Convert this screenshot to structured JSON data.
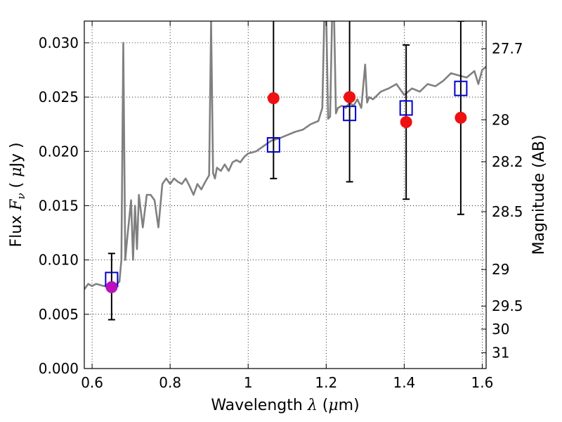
{
  "chart_data": {
    "type": "scatter",
    "title": "",
    "xlabel": "Wavelength  λ (μm)",
    "ylabel": "Flux  Fν  ( μJy )",
    "y2label": "Magnitude (AB)",
    "xlim": [
      0.58,
      1.61
    ],
    "ylim": [
      0.0,
      0.032
    ],
    "grid": true,
    "x_ticks": [
      0.6,
      0.8,
      1.0,
      1.2,
      1.4,
      1.6
    ],
    "x_tick_labels": [
      "0.6",
      "0.8",
      "1",
      "1.2",
      "1.4",
      "1.6"
    ],
    "y_ticks": [
      0.0,
      0.005,
      0.01,
      0.015,
      0.02,
      0.025,
      0.03
    ],
    "y_tick_labels": [
      "0.000",
      "0.005",
      "0.010",
      "0.015",
      "0.020",
      "0.025",
      "0.030"
    ],
    "y2_ticks": [
      {
        "flux": 0.02946,
        "label": "27.7"
      },
      {
        "flux": 0.02291,
        "label": "28"
      },
      {
        "flux": 0.01905,
        "label": "28.2"
      },
      {
        "flux": 0.01445,
        "label": "28.5"
      },
      {
        "flux": 0.00912,
        "label": "29"
      },
      {
        "flux": 0.00575,
        "label": "29.5"
      },
      {
        "flux": 0.00363,
        "label": "30"
      },
      {
        "flux": 0.00145,
        "label": "31"
      }
    ],
    "series": [
      {
        "kind": "line",
        "color": "#808080",
        "x": [
          0.58,
          0.59,
          0.6,
          0.61,
          0.62,
          0.63,
          0.64,
          0.65,
          0.66,
          0.67,
          0.675,
          0.68,
          0.685,
          0.69,
          0.7,
          0.705,
          0.71,
          0.715,
          0.72,
          0.73,
          0.74,
          0.75,
          0.76,
          0.77,
          0.78,
          0.79,
          0.8,
          0.81,
          0.82,
          0.83,
          0.84,
          0.85,
          0.86,
          0.87,
          0.88,
          0.89,
          0.9,
          0.905,
          0.91,
          0.915,
          0.92,
          0.93,
          0.94,
          0.95,
          0.96,
          0.97,
          0.98,
          0.99,
          1.0,
          1.02,
          1.04,
          1.06,
          1.08,
          1.1,
          1.12,
          1.14,
          1.16,
          1.18,
          1.19,
          1.195,
          1.2,
          1.205,
          1.21,
          1.215,
          1.22,
          1.225,
          1.23,
          1.24,
          1.25,
          1.26,
          1.27,
          1.28,
          1.29,
          1.3,
          1.305,
          1.31,
          1.32,
          1.34,
          1.36,
          1.38,
          1.4,
          1.42,
          1.44,
          1.46,
          1.48,
          1.5,
          1.52,
          1.54,
          1.56,
          1.58,
          1.59,
          1.6,
          1.61
        ],
        "y": [
          0.0073,
          0.0078,
          0.0076,
          0.0078,
          0.0077,
          0.0076,
          0.0077,
          0.0078,
          0.0077,
          0.008,
          0.01,
          0.03,
          0.01,
          0.012,
          0.0155,
          0.01,
          0.015,
          0.011,
          0.016,
          0.013,
          0.016,
          0.016,
          0.0155,
          0.013,
          0.017,
          0.0175,
          0.017,
          0.0175,
          0.0172,
          0.017,
          0.0175,
          0.0168,
          0.016,
          0.017,
          0.0165,
          0.0172,
          0.0178,
          0.032,
          0.018,
          0.0175,
          0.0185,
          0.0182,
          0.0188,
          0.0182,
          0.019,
          0.0192,
          0.019,
          0.0195,
          0.0198,
          0.02,
          0.0205,
          0.021,
          0.0212,
          0.0215,
          0.0218,
          0.022,
          0.0225,
          0.0228,
          0.024,
          0.032,
          0.033,
          0.023,
          0.0232,
          0.032,
          0.033,
          0.0235,
          0.024,
          0.0242,
          0.024,
          0.0245,
          0.0242,
          0.0248,
          0.024,
          0.028,
          0.0245,
          0.025,
          0.0248,
          0.0255,
          0.0258,
          0.0262,
          0.0252,
          0.0258,
          0.0255,
          0.0262,
          0.026,
          0.0265,
          0.0272,
          0.027,
          0.0268,
          0.0274,
          0.0262,
          0.0275,
          0.0278
        ]
      },
      {
        "kind": "model-points",
        "marker": "square",
        "color": "#0000cc",
        "x": [
          0.65,
          1.065,
          1.26,
          1.405,
          1.545
        ],
        "y": [
          0.0082,
          0.0206,
          0.0235,
          0.024,
          0.0258
        ]
      },
      {
        "kind": "observed-points",
        "marker": "circle",
        "color": "#ee1111",
        "x": [
          0.65,
          1.065,
          1.26,
          1.405,
          1.545
        ],
        "y": [
          0.0075,
          0.0249,
          0.025,
          0.0227,
          0.0231
        ],
        "point_colors": [
          "#bb11bb",
          "#ee1111",
          "#ee1111",
          "#ee1111",
          "#ee1111"
        ],
        "err_low": [
          0.0045,
          0.0175,
          0.0172,
          0.0156,
          0.0142
        ],
        "err_high": [
          0.0106,
          0.033,
          0.033,
          0.0298,
          0.032
        ]
      }
    ]
  }
}
